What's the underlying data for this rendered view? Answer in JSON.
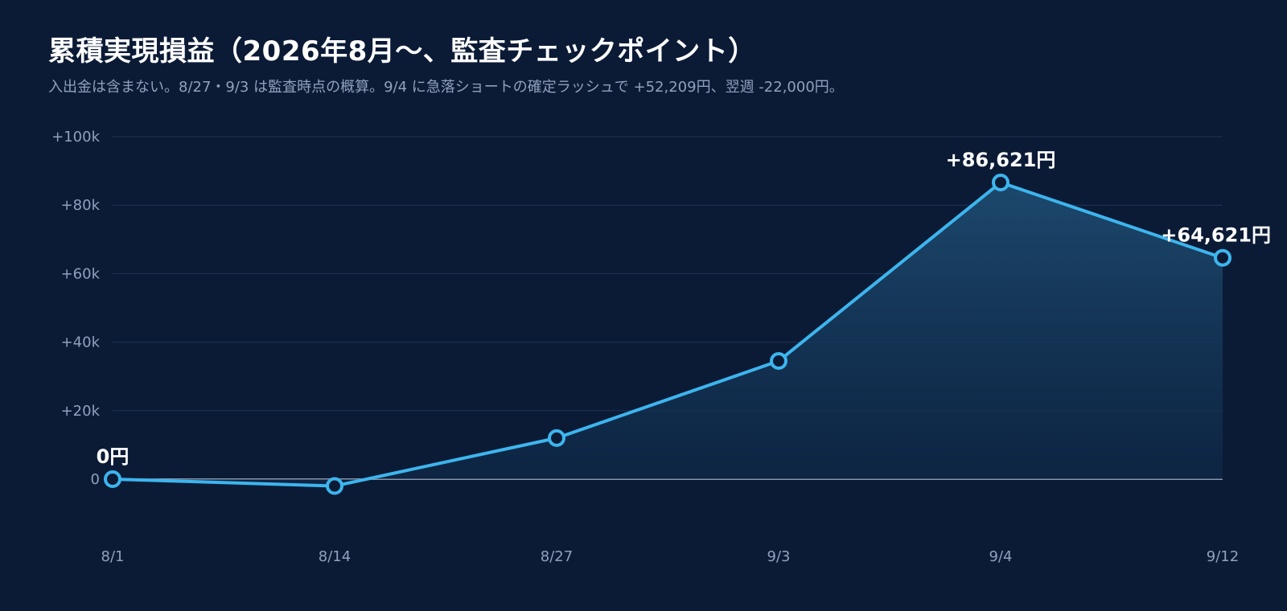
{
  "header": {
    "title": "累積実現損益（2026年8月〜、監査チェックポイント）",
    "subtitle": "入出金は含まない。8/27・9/3 は監査時点の概算。9/4 に急落ショートの確定ラッシュで +52,209円、翌週 -22,000円。"
  },
  "colors": {
    "background": "#0b1b36",
    "line": "#3db5ee",
    "grid": "#1d3557",
    "zero_line": "#b8c3d3",
    "area_top": "#1d4b70",
    "area_bottom": "#0f2a4a"
  },
  "chart_data": {
    "type": "area",
    "categories": [
      "8/1",
      "8/14",
      "8/27",
      "9/3",
      "9/4",
      "9/12"
    ],
    "series": [
      {
        "values": [
          0,
          -2000,
          12000,
          34500,
          86621,
          64621
        ]
      }
    ],
    "ylim": [
      -20000,
      100000
    ],
    "yticks": [
      0,
      20000,
      40000,
      60000,
      80000,
      100000
    ],
    "ytick_labels": [
      "0",
      "+20k",
      "+40k",
      "+60k",
      "+80k",
      "+100k"
    ],
    "data_labels": [
      {
        "index": 0,
        "text": "0円"
      },
      {
        "index": 4,
        "text": "+86,621円"
      },
      {
        "index": 5,
        "text": "+64,621円"
      }
    ],
    "grid": true
  }
}
